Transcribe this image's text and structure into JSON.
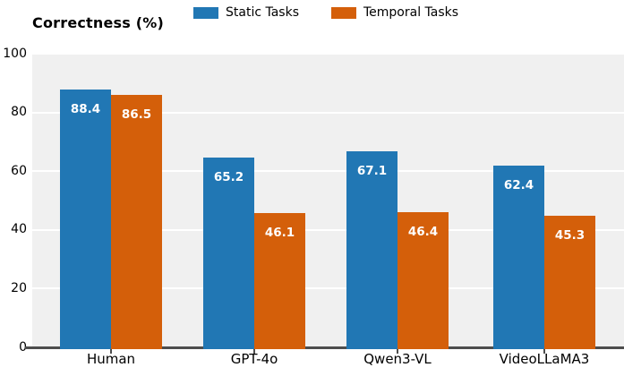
{
  "title": "Correctness (%)",
  "legend": [
    {
      "label": "Static Tasks",
      "color": "#2177b4"
    },
    {
      "label": "Temporal Tasks",
      "color": "#d45f0a"
    }
  ],
  "colors": {
    "static_bar": "#2177b4",
    "temporal_bar": "#d45f0a",
    "plot_background": "#f0f0f0",
    "gridline": "#ffffff",
    "axis": "#4d4d4d",
    "value_label_text": "#ffffff"
  },
  "chart_data": {
    "type": "bar",
    "title": "Correctness (%)",
    "categories": [
      "Human",
      "GPT-4o",
      "Qwen3-VL",
      "VideoLLaMA3"
    ],
    "series": [
      {
        "name": "Static Tasks",
        "color": "#2177b4",
        "values": [
          88.4,
          65.2,
          67.1,
          62.4
        ]
      },
      {
        "name": "Temporal Tasks",
        "color": "#d45f0a",
        "values": [
          86.5,
          46.1,
          46.4,
          45.3
        ]
      }
    ],
    "xlabel": "",
    "ylabel": "Correctness (%)",
    "ylim": [
      0,
      100
    ],
    "yticks": [
      0,
      20,
      40,
      60,
      80,
      100
    ],
    "grid": true,
    "legend_position": "top-center",
    "value_labels": true
  }
}
